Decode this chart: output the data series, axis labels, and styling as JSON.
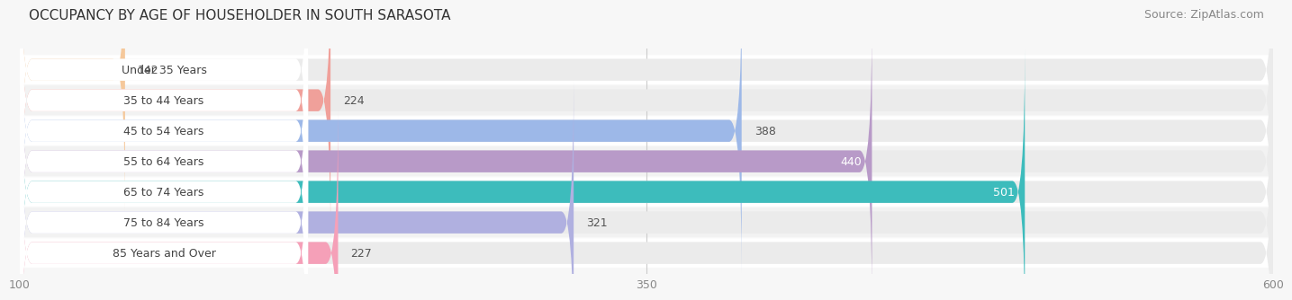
{
  "title": "OCCUPANCY BY AGE OF HOUSEHOLDER IN SOUTH SARASOTA",
  "source": "Source: ZipAtlas.com",
  "categories": [
    "Under 35 Years",
    "35 to 44 Years",
    "45 to 54 Years",
    "55 to 64 Years",
    "65 to 74 Years",
    "75 to 84 Years",
    "85 Years and Over"
  ],
  "values": [
    142,
    224,
    388,
    440,
    501,
    321,
    227
  ],
  "bar_colors": [
    "#f5c89b",
    "#f0a09a",
    "#9db8e8",
    "#b89ac8",
    "#3dbcbc",
    "#b0b0e0",
    "#f5a0b8"
  ],
  "label_colors": [
    "#444444",
    "#444444",
    "#444444",
    "#ffffff",
    "#ffffff",
    "#444444",
    "#444444"
  ],
  "xlim": [
    100,
    600
  ],
  "xticks": [
    100,
    350,
    600
  ],
  "bar_height": 0.72,
  "bg_color": "#f7f7f7",
  "bar_bg_color": "#ebebeb",
  "row_bg_colors": [
    "#ffffff",
    "#f0f0f0"
  ],
  "title_fontsize": 11,
  "source_fontsize": 9,
  "label_fontsize": 9,
  "value_fontsize": 9,
  "tick_fontsize": 9
}
